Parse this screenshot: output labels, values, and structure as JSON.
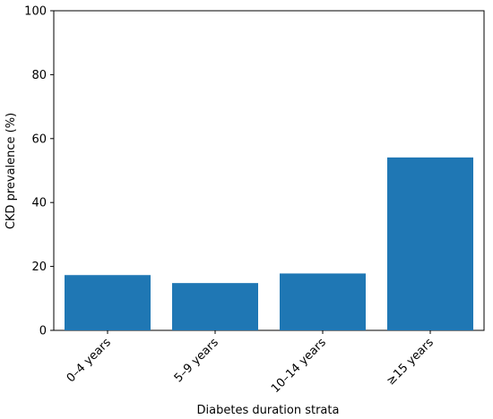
{
  "chart_data": {
    "type": "bar",
    "title": "",
    "xlabel": "Diabetes duration strata",
    "ylabel": "CKD prevalence (%)",
    "categories": [
      "0–4 years",
      "5–9 years",
      "10–14 years",
      "≥15 years"
    ],
    "values": [
      17.3,
      14.8,
      17.8,
      54.1
    ],
    "ylim": [
      0,
      100
    ],
    "yticks": [
      0,
      20,
      40,
      60,
      80,
      100
    ],
    "grid": false,
    "legend": "none",
    "bar_color": "#1f77b4",
    "axis_color": "#000000"
  }
}
